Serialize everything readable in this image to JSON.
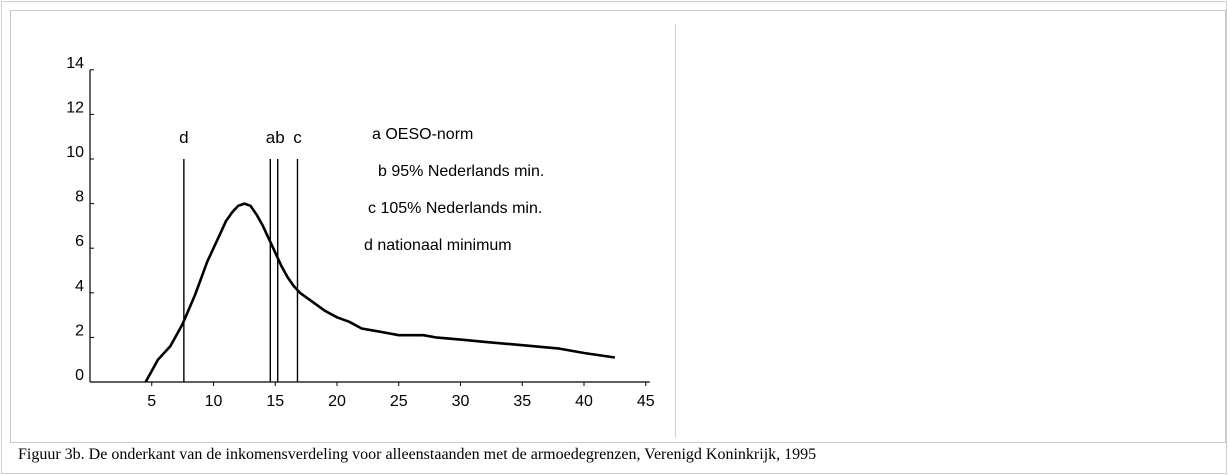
{
  "chart_data": {
    "type": "line",
    "title": "",
    "xlabel": "",
    "ylabel": "",
    "xlim": [
      0,
      45
    ],
    "ylim": [
      0,
      14
    ],
    "x_ticks": [
      5,
      10,
      15,
      20,
      25,
      30,
      35,
      40,
      45
    ],
    "y_ticks": [
      0,
      2,
      4,
      6,
      8,
      10,
      12,
      14
    ],
    "grid": false,
    "series": [
      {
        "name": "",
        "points": [
          [
            4.5,
            0.0
          ],
          [
            5.0,
            0.5
          ],
          [
            5.5,
            1.0
          ],
          [
            6.5,
            1.6
          ],
          [
            7.5,
            2.6
          ],
          [
            8.5,
            3.9
          ],
          [
            9.5,
            5.4
          ],
          [
            10.5,
            6.6
          ],
          [
            11.0,
            7.2
          ],
          [
            11.5,
            7.6
          ],
          [
            12.0,
            7.9
          ],
          [
            12.5,
            8.0
          ],
          [
            13.0,
            7.9
          ],
          [
            13.5,
            7.5
          ],
          [
            14.0,
            7.0
          ],
          [
            14.5,
            6.4
          ],
          [
            15.0,
            5.8
          ],
          [
            15.5,
            5.2
          ],
          [
            16.0,
            4.7
          ],
          [
            16.5,
            4.3
          ],
          [
            17.0,
            4.0
          ],
          [
            18.0,
            3.6
          ],
          [
            19.0,
            3.2
          ],
          [
            20.0,
            2.9
          ],
          [
            21.0,
            2.7
          ],
          [
            22.0,
            2.4
          ],
          [
            23.0,
            2.3
          ],
          [
            24.0,
            2.2
          ],
          [
            25.0,
            2.1
          ],
          [
            27.0,
            2.1
          ],
          [
            28.0,
            2.0
          ],
          [
            30.0,
            1.9
          ],
          [
            32.0,
            1.8
          ],
          [
            34.0,
            1.7
          ],
          [
            36.0,
            1.6
          ],
          [
            38.0,
            1.5
          ],
          [
            40.0,
            1.3
          ],
          [
            42.5,
            1.1
          ]
        ]
      }
    ],
    "vlines": [
      {
        "label": "d",
        "x": 7.6,
        "top": 10
      },
      {
        "label": "a",
        "x": 14.6,
        "top": 10
      },
      {
        "label": "b",
        "x": 15.2,
        "top": 10
      },
      {
        "label": "c",
        "x": 16.8,
        "top": 10
      }
    ],
    "vline_labels": [
      {
        "text": "d",
        "x": 7.6
      },
      {
        "text": "ab",
        "x": 15.0
      },
      {
        "text": "c",
        "x": 16.8
      }
    ],
    "legend": [
      "a OESO-norm",
      "b 95% Nederlands min.",
      "c 105% Nederlands min.",
      "d nationaal minimum"
    ],
    "legend_position": "top-right",
    "line_color": "#000000"
  },
  "caption": "Figuur 3b. De onderkant van de inkomensverdeling voor alleenstaanden met de armoedegrenzen, Verenigd Koninkrijk, 1995"
}
